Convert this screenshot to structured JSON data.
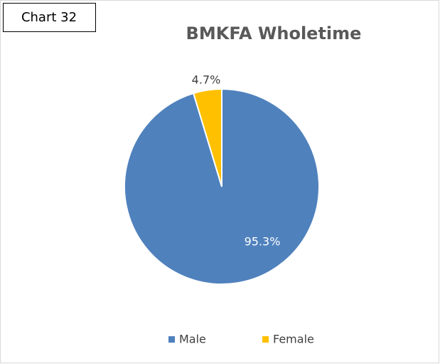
{
  "tag": "Chart 32",
  "chart_data": {
    "type": "pie",
    "title": "BMKFA Wholetime",
    "categories": [
      "Male",
      "Female"
    ],
    "values": [
      95.3,
      4.7
    ],
    "value_labels": [
      "95.3%",
      "4.7%"
    ],
    "colors": [
      "#4f81bd",
      "#ffc000"
    ],
    "legend": "bottom"
  }
}
